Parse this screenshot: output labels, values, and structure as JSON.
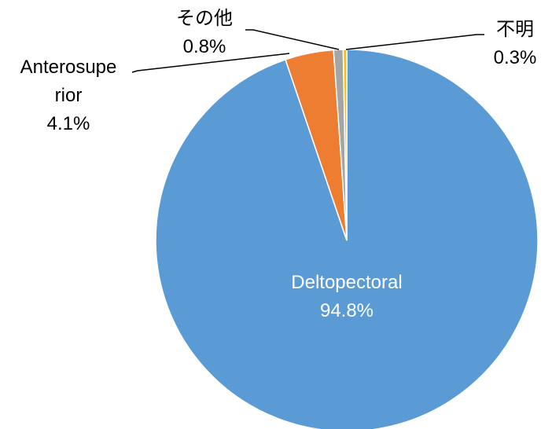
{
  "chart_data": {
    "type": "pie",
    "categories": [
      "Deltopectoral",
      "Anterosuperior",
      "その他",
      "不明"
    ],
    "values": [
      94.8,
      4.1,
      0.8,
      0.3
    ],
    "value_labels": [
      "94.8%",
      "4.1%",
      "0.8%",
      "0.3%"
    ],
    "colors": [
      "#5b9bd5",
      "#ed7d31",
      "#a5a5a5",
      "#ffc000"
    ]
  }
}
